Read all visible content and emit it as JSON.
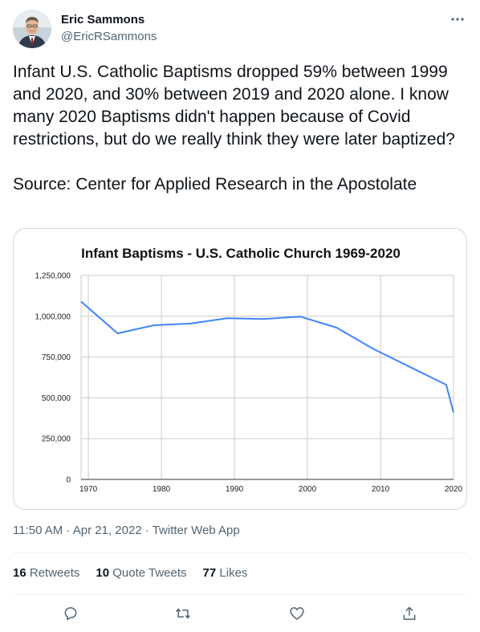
{
  "user": {
    "name": "Eric Sammons",
    "handle": "@EricRSammons"
  },
  "tweet": {
    "text": "Infant U.S. Catholic Baptisms dropped 59% between 1999 and 2020, and 30% between 2019 and 2020 alone. I know many 2020 Baptisms didn't happen because of Covid restrictions, but do we really think they were later baptized?\n\nSource: Center for Applied Research in the Apostolate",
    "timestamp": "11:50 AM · Apr 21, 2022 · Twitter Web App"
  },
  "stats": {
    "retweets_count": "16",
    "retweets_label": "Retweets",
    "quotes_count": "10",
    "quotes_label": "Quote Tweets",
    "likes_count": "77",
    "likes_label": "Likes"
  },
  "icons": {
    "more": "more-icon",
    "reply": "reply-icon",
    "retweet": "retweet-icon",
    "like": "heart-icon",
    "share": "share-icon"
  },
  "chart_data": {
    "type": "line",
    "title": "Infant Baptisms - U.S. Catholic Church 1969-2020",
    "xlim": [
      1969,
      2020
    ],
    "ylim": [
      0,
      1250000
    ],
    "x_ticks": [
      1970,
      1980,
      1990,
      2000,
      2010,
      2020
    ],
    "x_tick_labels": [
      "1970",
      "1980",
      "1990",
      "2000",
      "2010",
      "2020"
    ],
    "y_ticks": [
      0,
      250000,
      500000,
      750000,
      1000000,
      1250000
    ],
    "y_tick_labels": [
      "0",
      "250,000",
      "500,000",
      "750,000",
      "1,000,000",
      "1,250,000"
    ],
    "grid": true,
    "line_color": "#4285f4",
    "series": [
      {
        "x": [
          1969,
          1974,
          1979,
          1984,
          1989,
          1994,
          1999,
          2004,
          2009,
          2014,
          2019,
          2020
        ],
        "values": [
          1090000,
          895000,
          945000,
          955000,
          988000,
          983000,
          998000,
          930000,
          800000,
          690000,
          580000,
          410000
        ]
      }
    ]
  }
}
